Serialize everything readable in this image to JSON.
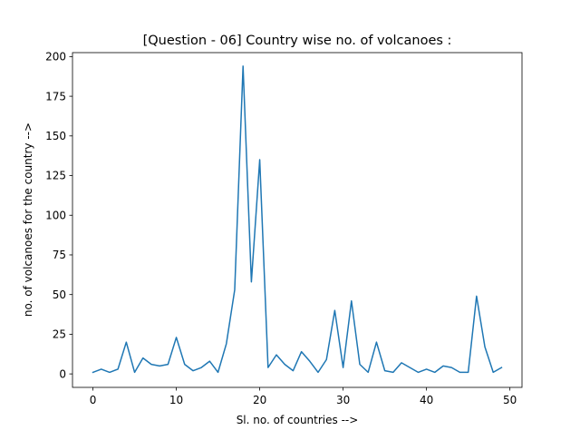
{
  "chart_data": {
    "type": "line",
    "title": "[Question - 06] Country wise no. of volcanoes  :",
    "xlabel": "Sl. no. of countries -->",
    "ylabel": "no. of volcanoes for the country -->",
    "xlim": [
      -2.45,
      51.45
    ],
    "ylim": [
      -8.5,
      202.5
    ],
    "xticks": [
      0,
      10,
      20,
      30,
      40,
      50
    ],
    "yticks": [
      0,
      25,
      50,
      75,
      100,
      125,
      150,
      175,
      200
    ],
    "grid": false,
    "legend": "none",
    "series": [
      {
        "color": "#1f77b4",
        "x": [
          0,
          1,
          2,
          3,
          4,
          5,
          6,
          7,
          8,
          9,
          10,
          11,
          12,
          13,
          14,
          15,
          16,
          17,
          18,
          19,
          20,
          21,
          22,
          23,
          24,
          25,
          26,
          27,
          28,
          29,
          30,
          31,
          32,
          33,
          34,
          35,
          36,
          37,
          38,
          39,
          40,
          41,
          42,
          43,
          44,
          45,
          46,
          47,
          48,
          49
        ],
        "y": [
          1,
          3,
          1,
          3,
          20,
          1,
          10,
          6,
          5,
          6,
          23,
          6,
          2,
          4,
          8,
          1,
          19,
          53,
          194,
          58,
          135,
          4,
          12,
          6,
          2,
          14,
          8,
          1,
          9,
          40,
          4,
          46,
          6,
          1,
          20,
          2,
          1,
          7,
          4,
          1,
          3,
          1,
          5,
          4,
          1,
          1,
          49,
          17,
          1,
          4
        ]
      }
    ]
  }
}
